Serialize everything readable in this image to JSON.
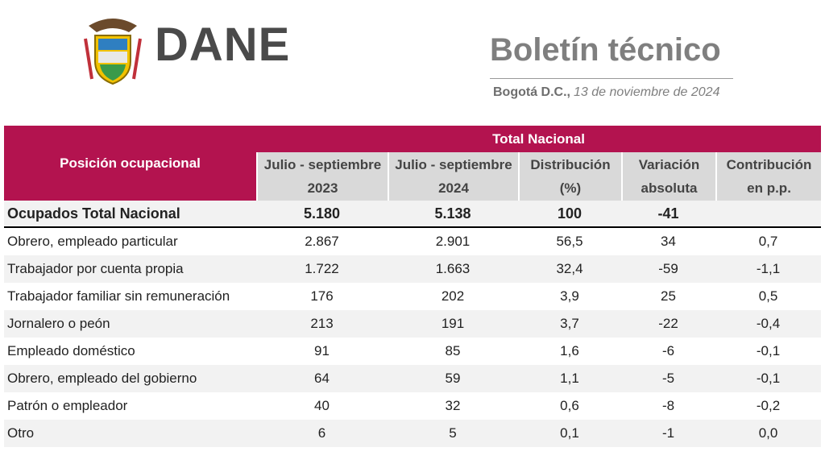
{
  "header": {
    "logo_text": "DANE",
    "title": "Boletín técnico",
    "location": "Bogotá D.C.,",
    "date": "13 de noviembre de 2024"
  },
  "table": {
    "row_header": "Posición ocupacional",
    "group_header": "Total Nacional",
    "columns": [
      [
        "Julio - septiembre",
        "2023"
      ],
      [
        "Julio - septiembre",
        "2024"
      ],
      [
        "Distribución",
        "(%)"
      ],
      [
        "Variación",
        "absoluta"
      ],
      [
        "Contribución",
        "en p.p."
      ]
    ],
    "total_row": [
      "Ocupados Total Nacional",
      "5.180",
      "5.138",
      "100",
      "-41"
    ],
    "rows": [
      [
        "Obrero, empleado particular",
        "2.867",
        "2.901",
        "56,5",
        "34",
        "0,7"
      ],
      [
        "Trabajador por cuenta propia",
        "1.722",
        "1.663",
        "32,4",
        "-59",
        "-1,1"
      ],
      [
        "Trabajador familiar sin remuneración",
        "176",
        "202",
        "3,9",
        "25",
        "0,5"
      ],
      [
        "Jornalero o peón",
        "213",
        "191",
        "3,7",
        "-22",
        "-0,4"
      ],
      [
        "Empleado doméstico",
        "91",
        "85",
        "1,6",
        "-6",
        "-0,1"
      ],
      [
        "Obrero, empleado del gobierno",
        "64",
        "59",
        "1,1",
        "-5",
        "-0,1"
      ],
      [
        "Patrón o empleador",
        "40",
        "32",
        "0,6",
        "-8",
        "-0,2"
      ],
      [
        "Otro",
        "6",
        "5",
        "0,1",
        "-1",
        "0,0"
      ]
    ]
  }
}
